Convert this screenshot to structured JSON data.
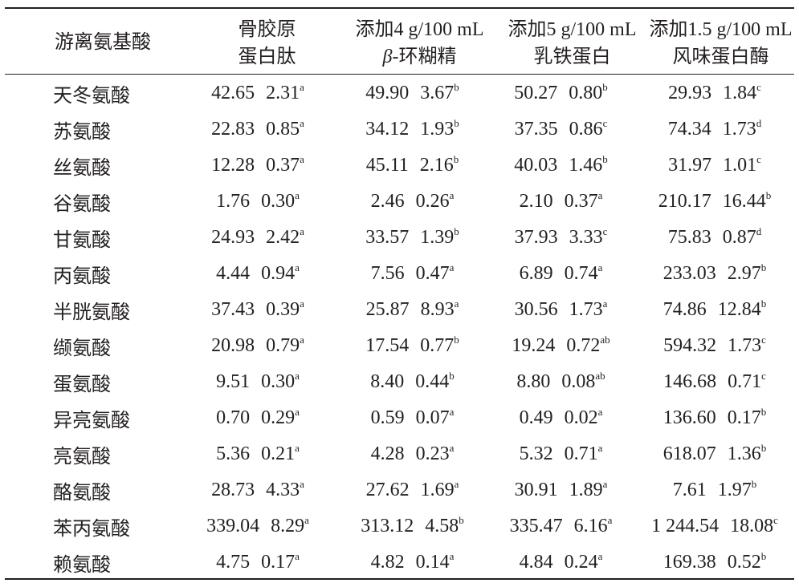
{
  "headers": {
    "name": "游离氨基酸",
    "c1_line1": "骨胶原",
    "c1_line2": "蛋白肽",
    "c2_line1": "添加4 g/100 mL",
    "c2_line2_beta": "β",
    "c2_line2_rest": "-环糊精",
    "c3_line1": "添加5 g/100 mL",
    "c3_line2": "乳铁蛋白",
    "c4_line1": "添加1.5 g/100 mL",
    "c4_line2": "风味蛋白酶"
  },
  "rows": [
    {
      "name": "天冬氨酸",
      "cells": [
        {
          "m": "42.65",
          "sd": "2.31",
          "sup": "a"
        },
        {
          "m": "49.90",
          "sd": "3.67",
          "sup": "b"
        },
        {
          "m": "50.27",
          "sd": "0.80",
          "sup": "b"
        },
        {
          "m": "29.93",
          "sd": "1.84",
          "sup": "c"
        }
      ]
    },
    {
      "name": "苏氨酸",
      "cells": [
        {
          "m": "22.83",
          "sd": "0.85",
          "sup": "a"
        },
        {
          "m": "34.12",
          "sd": "1.93",
          "sup": "b"
        },
        {
          "m": "37.35",
          "sd": "0.86",
          "sup": "c"
        },
        {
          "m": "74.34",
          "sd": "1.73",
          "sup": "d"
        }
      ]
    },
    {
      "name": "丝氨酸",
      "cells": [
        {
          "m": "12.28",
          "sd": "0.37",
          "sup": "a"
        },
        {
          "m": "45.11",
          "sd": "2.16",
          "sup": "b"
        },
        {
          "m": "40.03",
          "sd": "1.46",
          "sup": "b"
        },
        {
          "m": "31.97",
          "sd": "1.01",
          "sup": "c"
        }
      ]
    },
    {
      "name": "谷氨酸",
      "cells": [
        {
          "m": "1.76",
          "sd": "0.30",
          "sup": "a"
        },
        {
          "m": "2.46",
          "sd": "0.26",
          "sup": "a"
        },
        {
          "m": "2.10",
          "sd": "0.37",
          "sup": "a"
        },
        {
          "m": "210.17",
          "sd": "16.44",
          "sup": "b"
        }
      ]
    },
    {
      "name": "甘氨酸",
      "cells": [
        {
          "m": "24.93",
          "sd": "2.42",
          "sup": "a"
        },
        {
          "m": "33.57",
          "sd": "1.39",
          "sup": "b"
        },
        {
          "m": "37.93",
          "sd": "3.33",
          "sup": "c"
        },
        {
          "m": "75.83",
          "sd": "0.87",
          "sup": "d"
        }
      ]
    },
    {
      "name": "丙氨酸",
      "cells": [
        {
          "m": "4.44",
          "sd": "0.94",
          "sup": "a"
        },
        {
          "m": "7.56",
          "sd": "0.47",
          "sup": "a"
        },
        {
          "m": "6.89",
          "sd": "0.74",
          "sup": "a"
        },
        {
          "m": "233.03",
          "sd": "2.97",
          "sup": "b"
        }
      ]
    },
    {
      "name": "半胱氨酸",
      "cells": [
        {
          "m": "37.43",
          "sd": "0.39",
          "sup": "a"
        },
        {
          "m": "25.87",
          "sd": "8.93",
          "sup": "a"
        },
        {
          "m": "30.56",
          "sd": "1.73",
          "sup": "a"
        },
        {
          "m": "74.86",
          "sd": "12.84",
          "sup": "b"
        }
      ]
    },
    {
      "name": "缬氨酸",
      "cells": [
        {
          "m": "20.98",
          "sd": "0.79",
          "sup": "a"
        },
        {
          "m": "17.54",
          "sd": "0.77",
          "sup": "b"
        },
        {
          "m": "19.24",
          "sd": "0.72",
          "sup": "ab"
        },
        {
          "m": "594.32",
          "sd": "1.73",
          "sup": "c"
        }
      ]
    },
    {
      "name": "蛋氨酸",
      "cells": [
        {
          "m": "9.51",
          "sd": "0.30",
          "sup": "a"
        },
        {
          "m": "8.40",
          "sd": "0.44",
          "sup": "b"
        },
        {
          "m": "8.80",
          "sd": "0.08",
          "sup": "ab"
        },
        {
          "m": "146.68",
          "sd": "0.71",
          "sup": "c"
        }
      ]
    },
    {
      "name": "异亮氨酸",
      "cells": [
        {
          "m": "0.70",
          "sd": "0.29",
          "sup": "a"
        },
        {
          "m": "0.59",
          "sd": "0.07",
          "sup": "a"
        },
        {
          "m": "0.49",
          "sd": "0.02",
          "sup": "a"
        },
        {
          "m": "136.60",
          "sd": "0.17",
          "sup": "b"
        }
      ]
    },
    {
      "name": "亮氨酸",
      "cells": [
        {
          "m": "5.36",
          "sd": "0.21",
          "sup": "a"
        },
        {
          "m": "4.28",
          "sd": "0.23",
          "sup": "a"
        },
        {
          "m": "5.32",
          "sd": "0.71",
          "sup": "a"
        },
        {
          "m": "618.07",
          "sd": "1.36",
          "sup": "b"
        }
      ]
    },
    {
      "name": "酪氨酸",
      "cells": [
        {
          "m": "28.73",
          "sd": "4.33",
          "sup": "a"
        },
        {
          "m": "27.62",
          "sd": "1.69",
          "sup": "a"
        },
        {
          "m": "30.91",
          "sd": "1.89",
          "sup": "a"
        },
        {
          "m": "7.61",
          "sd": "1.97",
          "sup": "b"
        }
      ]
    },
    {
      "name": "苯丙氨酸",
      "cells": [
        {
          "m": "339.04",
          "sd": "8.29",
          "sup": "a"
        },
        {
          "m": "313.12",
          "sd": "4.58",
          "sup": "b"
        },
        {
          "m": "335.47",
          "sd": "6.16",
          "sup": "a"
        },
        {
          "m": "1 244.54",
          "sd": "18.08",
          "sup": "c"
        }
      ]
    },
    {
      "name": "赖氨酸",
      "cells": [
        {
          "m": "4.75",
          "sd": "0.17",
          "sup": "a"
        },
        {
          "m": "4.82",
          "sd": "0.14",
          "sup": "a"
        },
        {
          "m": "4.84",
          "sd": "0.24",
          "sup": "a"
        },
        {
          "m": "169.38",
          "sd": "0.52",
          "sup": "b"
        }
      ]
    }
  ]
}
